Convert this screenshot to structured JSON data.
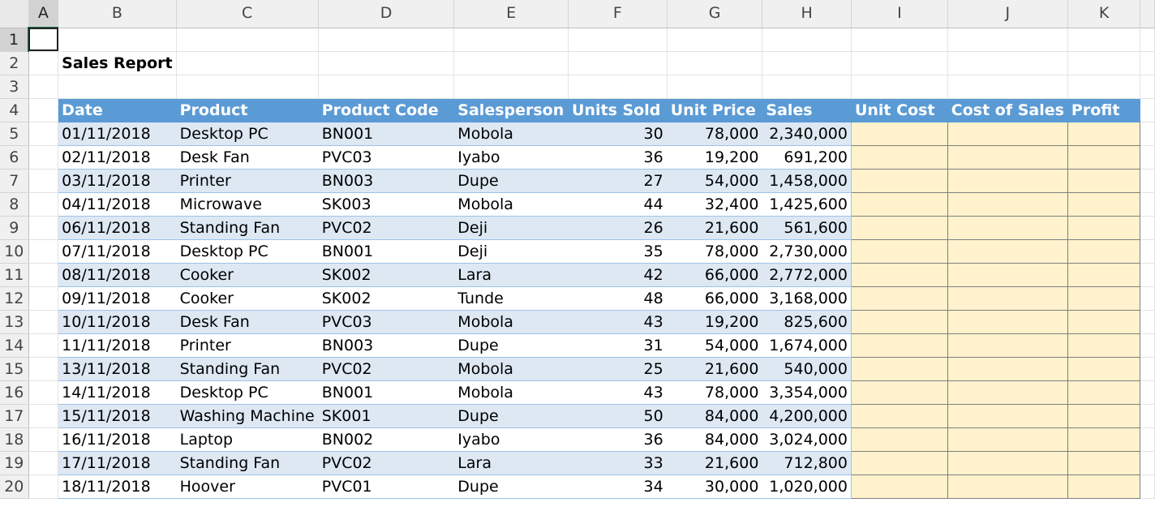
{
  "columns": [
    "A",
    "B",
    "C",
    "D",
    "E",
    "F",
    "G",
    "H",
    "I",
    "J",
    "K"
  ],
  "rows": [
    "1",
    "2",
    "3",
    "4",
    "5",
    "6",
    "7",
    "8",
    "9",
    "10",
    "11",
    "12",
    "13",
    "14",
    "15",
    "16",
    "17",
    "18",
    "19",
    "20"
  ],
  "title": "Sales Report",
  "headers": [
    "Date",
    "Product",
    "Product Code",
    "Salesperson",
    "Units Sold",
    "Unit Price",
    "Sales",
    "Unit Cost",
    "Cost of Sales",
    "Profit"
  ],
  "data": [
    [
      "01/11/2018",
      "Desktop PC",
      "BN001",
      "Mobola",
      "30",
      "78,000",
      "2,340,000"
    ],
    [
      "02/11/2018",
      "Desk Fan",
      "PVC03",
      "Iyabo",
      "36",
      "19,200",
      "691,200"
    ],
    [
      "03/11/2018",
      "Printer",
      "BN003",
      "Dupe",
      "27",
      "54,000",
      "1,458,000"
    ],
    [
      "04/11/2018",
      "Microwave",
      "SK003",
      "Mobola",
      "44",
      "32,400",
      "1,425,600"
    ],
    [
      "06/11/2018",
      "Standing Fan",
      "PVC02",
      "Deji",
      "26",
      "21,600",
      "561,600"
    ],
    [
      "07/11/2018",
      "Desktop PC",
      "BN001",
      "Deji",
      "35",
      "78,000",
      "2,730,000"
    ],
    [
      "08/11/2018",
      "Cooker",
      "SK002",
      "Lara",
      "42",
      "66,000",
      "2,772,000"
    ],
    [
      "09/11/2018",
      "Cooker",
      "SK002",
      "Tunde",
      "48",
      "66,000",
      "3,168,000"
    ],
    [
      "10/11/2018",
      "Desk Fan",
      "PVC03",
      "Mobola",
      "43",
      "19,200",
      "825,600"
    ],
    [
      "11/11/2018",
      "Printer",
      "BN003",
      "Dupe",
      "31",
      "54,000",
      "1,674,000"
    ],
    [
      "13/11/2018",
      "Standing Fan",
      "PVC02",
      "Mobola",
      "25",
      "21,600",
      "540,000"
    ],
    [
      "14/11/2018",
      "Desktop PC",
      "BN001",
      "Mobola",
      "43",
      "78,000",
      "3,354,000"
    ],
    [
      "15/11/2018",
      "Washing Machine",
      "SK001",
      "Dupe",
      "50",
      "84,000",
      "4,200,000"
    ],
    [
      "16/11/2018",
      "Laptop",
      "BN002",
      "Iyabo",
      "36",
      "84,000",
      "3,024,000"
    ],
    [
      "17/11/2018",
      "Standing Fan",
      "PVC02",
      "Lara",
      "33",
      "21,600",
      "712,800"
    ],
    [
      "18/11/2018",
      "Hoover",
      "PVC01",
      "Dupe",
      "34",
      "30,000",
      "1,020,000"
    ]
  ],
  "colors": {
    "header_fill": "#5b9bd5",
    "band_fill": "#dde8f3",
    "input_fill": "#fff2cc"
  }
}
